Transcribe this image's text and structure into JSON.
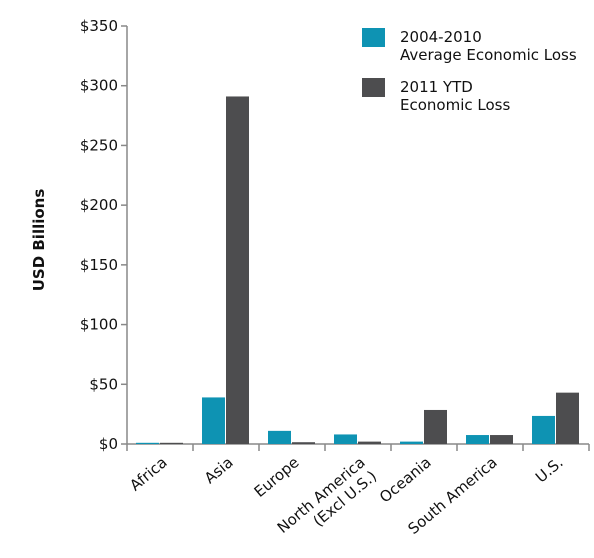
{
  "chart_data": {
    "type": "bar",
    "y_label": "USD Billions",
    "categories": [
      "Africa",
      "Asia",
      "Europe",
      "North America\n(Excl U.S.)",
      "Oceania",
      "South America",
      "U.S."
    ],
    "series": [
      {
        "name": "2004-2010\nAverage Economic Loss",
        "color": "#0e93b3",
        "values": [
          1,
          39,
          11,
          8,
          2,
          7.5,
          23.5
        ]
      },
      {
        "name": "2011 YTD\nEconomic Loss",
        "color": "#4d4d4f",
        "values": [
          1,
          291,
          1.5,
          2,
          28.5,
          7.5,
          43
        ]
      }
    ],
    "ylim": [
      0,
      350
    ],
    "yticks": [
      {
        "value": 0,
        "label": "$0"
      },
      {
        "value": 50,
        "label": "$50"
      },
      {
        "value": 100,
        "label": "$100"
      },
      {
        "value": 150,
        "label": "$150"
      },
      {
        "value": 200,
        "label": "$200"
      },
      {
        "value": 250,
        "label": "$250"
      },
      {
        "value": 300,
        "label": "$300"
      },
      {
        "value": 350,
        "label": "$350"
      }
    ],
    "legend": "upper right"
  }
}
